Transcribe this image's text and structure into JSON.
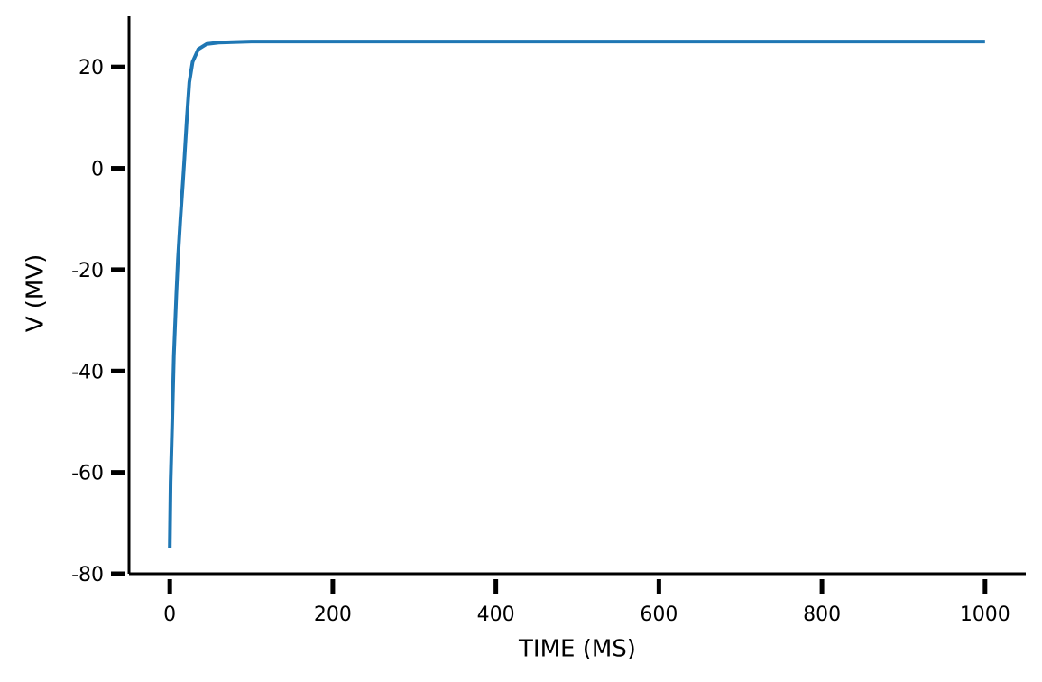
{
  "chart_data": {
    "type": "line",
    "xlabel": "TIME (MS)",
    "ylabel": "V (MV)",
    "x": [
      0,
      1,
      3,
      5,
      8,
      10,
      13,
      16,
      18,
      21,
      24,
      28,
      35,
      45,
      60,
      100,
      200,
      300,
      400,
      500,
      600,
      700,
      800,
      900,
      1000
    ],
    "series": [
      {
        "color": "#1f77b4",
        "values": [
          -75,
          -62,
          -50,
          -37,
          -25,
          -18,
          -10,
          -3,
          2,
          10,
          17,
          21,
          23.5,
          24.5,
          24.8,
          25,
          25,
          25,
          25,
          25,
          25,
          25,
          25,
          25,
          25
        ]
      }
    ],
    "xlim": [
      -50,
      1050
    ],
    "ylim": [
      -80,
      30
    ],
    "xticks": [
      0,
      200,
      400,
      600,
      800,
      1000
    ],
    "yticks": [
      -80,
      -60,
      -40,
      -20,
      0,
      20
    ]
  }
}
